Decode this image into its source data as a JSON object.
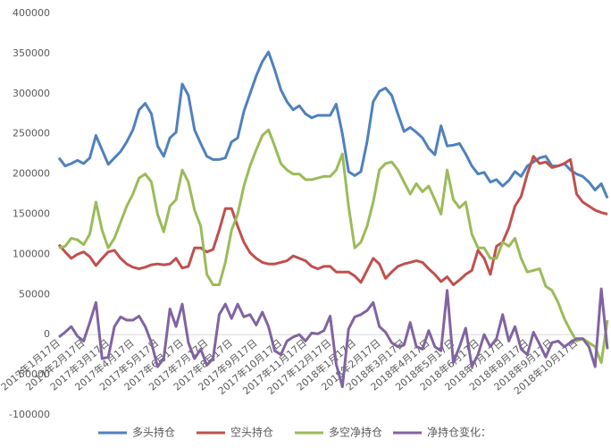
{
  "chart_data": {
    "type": "line",
    "categories": [
      "2017年1月17日",
      null,
      null,
      null,
      "2017年2月17日",
      null,
      null,
      null,
      "2017年3月17日",
      null,
      null,
      null,
      "2017年4月17日",
      null,
      null,
      null,
      "2017年5月17日",
      null,
      null,
      null,
      "2017年6月17日",
      null,
      null,
      null,
      "2017年7月17日",
      null,
      null,
      null,
      "2017年8月17日",
      null,
      null,
      null,
      "2017年9月17日",
      null,
      null,
      null,
      "2017年10月17日",
      null,
      null,
      null,
      "2017年11月17日",
      null,
      null,
      null,
      "2017年12月17日",
      null,
      null,
      null,
      "2018年1月17日",
      null,
      null,
      null,
      "2018年2月17日",
      null,
      null,
      null,
      "2018年3月17日",
      null,
      null,
      null,
      "2018年4月17日",
      null,
      null,
      null,
      "2018年5月17日",
      null,
      null,
      null,
      "2018年6月17日",
      null,
      null,
      null,
      "2018年7月17日",
      null,
      null,
      null,
      "2018年8月17日",
      null,
      null,
      null,
      "2018年9月17日",
      null,
      null,
      null,
      "2018年10月17日",
      null,
      null,
      null,
      null,
      null
    ],
    "series": [
      {
        "name": "多头持仓",
        "color": "#4f81bd",
        "values": [
          220000,
          210000,
          213000,
          217000,
          213000,
          220000,
          248000,
          230000,
          212000,
          220000,
          228000,
          240000,
          255000,
          280000,
          288000,
          275000,
          235000,
          222000,
          245000,
          252000,
          312000,
          298000,
          255000,
          238000,
          222000,
          218000,
          218000,
          220000,
          240000,
          245000,
          278000,
          300000,
          322000,
          340000,
          352000,
          330000,
          305000,
          290000,
          280000,
          285000,
          275000,
          270000,
          273000,
          273000,
          273000,
          287000,
          250000,
          203000,
          198000,
          203000,
          240000,
          290000,
          303000,
          307000,
          298000,
          275000,
          253000,
          258000,
          252000,
          245000,
          232000,
          224000,
          260000,
          235000,
          236000,
          238000,
          225000,
          210000,
          200000,
          202000,
          190000,
          193000,
          185000,
          192000,
          203000,
          197000,
          210000,
          215000,
          220000,
          222000,
          210000,
          210000,
          213000,
          205000,
          200000,
          197000,
          190000,
          180000,
          188000,
          170000
        ]
      },
      {
        "name": "空头持仓",
        "color": "#c0504d",
        "values": [
          112000,
          103000,
          95000,
          100000,
          103000,
          97000,
          86000,
          95000,
          103000,
          105000,
          95000,
          88000,
          84000,
          82000,
          84000,
          87000,
          88000,
          87000,
          88000,
          95000,
          83000,
          85000,
          108000,
          108000,
          103000,
          106000,
          130000,
          157000,
          157000,
          135000,
          115000,
          102000,
          95000,
          90000,
          88000,
          88000,
          90000,
          92000,
          98000,
          95000,
          92000,
          85000,
          82000,
          85000,
          85000,
          78000,
          78000,
          78000,
          73000,
          65000,
          80000,
          95000,
          88000,
          70000,
          78000,
          85000,
          88000,
          90000,
          92000,
          90000,
          82000,
          75000,
          66000,
          72000,
          62000,
          68000,
          75000,
          80000,
          105000,
          95000,
          75000,
          110000,
          115000,
          133000,
          160000,
          172000,
          200000,
          222000,
          213000,
          215000,
          208000,
          210000,
          213000,
          218000,
          175000,
          165000,
          160000,
          155000,
          152000,
          150000
        ]
      },
      {
        "name": "多空净持仓",
        "color": "#9bbb59",
        "values": [
          108000,
          110000,
          120000,
          118000,
          112000,
          125000,
          165000,
          130000,
          108000,
          120000,
          140000,
          160000,
          175000,
          195000,
          200000,
          190000,
          150000,
          128000,
          160000,
          168000,
          205000,
          190000,
          155000,
          135000,
          75000,
          62000,
          62000,
          90000,
          130000,
          150000,
          185000,
          210000,
          230000,
          248000,
          255000,
          235000,
          213000,
          205000,
          200000,
          200000,
          193000,
          193000,
          195000,
          197000,
          197000,
          205000,
          225000,
          160000,
          108000,
          115000,
          135000,
          165000,
          205000,
          213000,
          215000,
          205000,
          190000,
          175000,
          188000,
          178000,
          185000,
          168000,
          150000,
          205000,
          168000,
          158000,
          165000,
          125000,
          108000,
          108000,
          95000,
          95000,
          115000,
          110000,
          120000,
          95000,
          78000,
          80000,
          82000,
          60000,
          55000,
          40000,
          20000,
          5000,
          -8000,
          -5000,
          -10000,
          -15000,
          -35000,
          18000
        ]
      },
      {
        "name": "净持仓变化：",
        "color": "#8064a2",
        "values": [
          -3000,
          3000,
          10000,
          -2000,
          -8000,
          15000,
          40000,
          -30000,
          -28000,
          10000,
          22000,
          18000,
          18000,
          23000,
          10000,
          -10000,
          -40000,
          -30000,
          32000,
          10000,
          38000,
          -10000,
          -30000,
          -18000,
          -38000,
          -30000,
          25000,
          38000,
          20000,
          38000,
          22000,
          25000,
          12000,
          28000,
          10000,
          -20000,
          -25000,
          -8000,
          -3000,
          0,
          -8000,
          2000,
          1000,
          5000,
          23000,
          -37000,
          -65000,
          7000,
          22000,
          25000,
          30000,
          40000,
          10000,
          3000,
          -10000,
          -15000,
          -13000,
          15000,
          -15000,
          -18000,
          5000,
          -15000,
          -20000,
          55000,
          -35000,
          -15000,
          8000,
          -40000,
          -25000,
          0,
          -15000,
          -5000,
          25000,
          -8000,
          10000,
          -18000,
          -25000,
          3000,
          -12000,
          -28000,
          -10000,
          -8000,
          -15000,
          -10000,
          -5000,
          -5000,
          -15000,
          -40000,
          57000,
          -18000
        ]
      }
    ],
    "ylim": [
      -100000,
      400000
    ],
    "yticks": [
      -100000,
      -50000,
      0,
      50000,
      100000,
      150000,
      200000,
      250000,
      300000,
      350000,
      400000
    ],
    "grid": false
  }
}
